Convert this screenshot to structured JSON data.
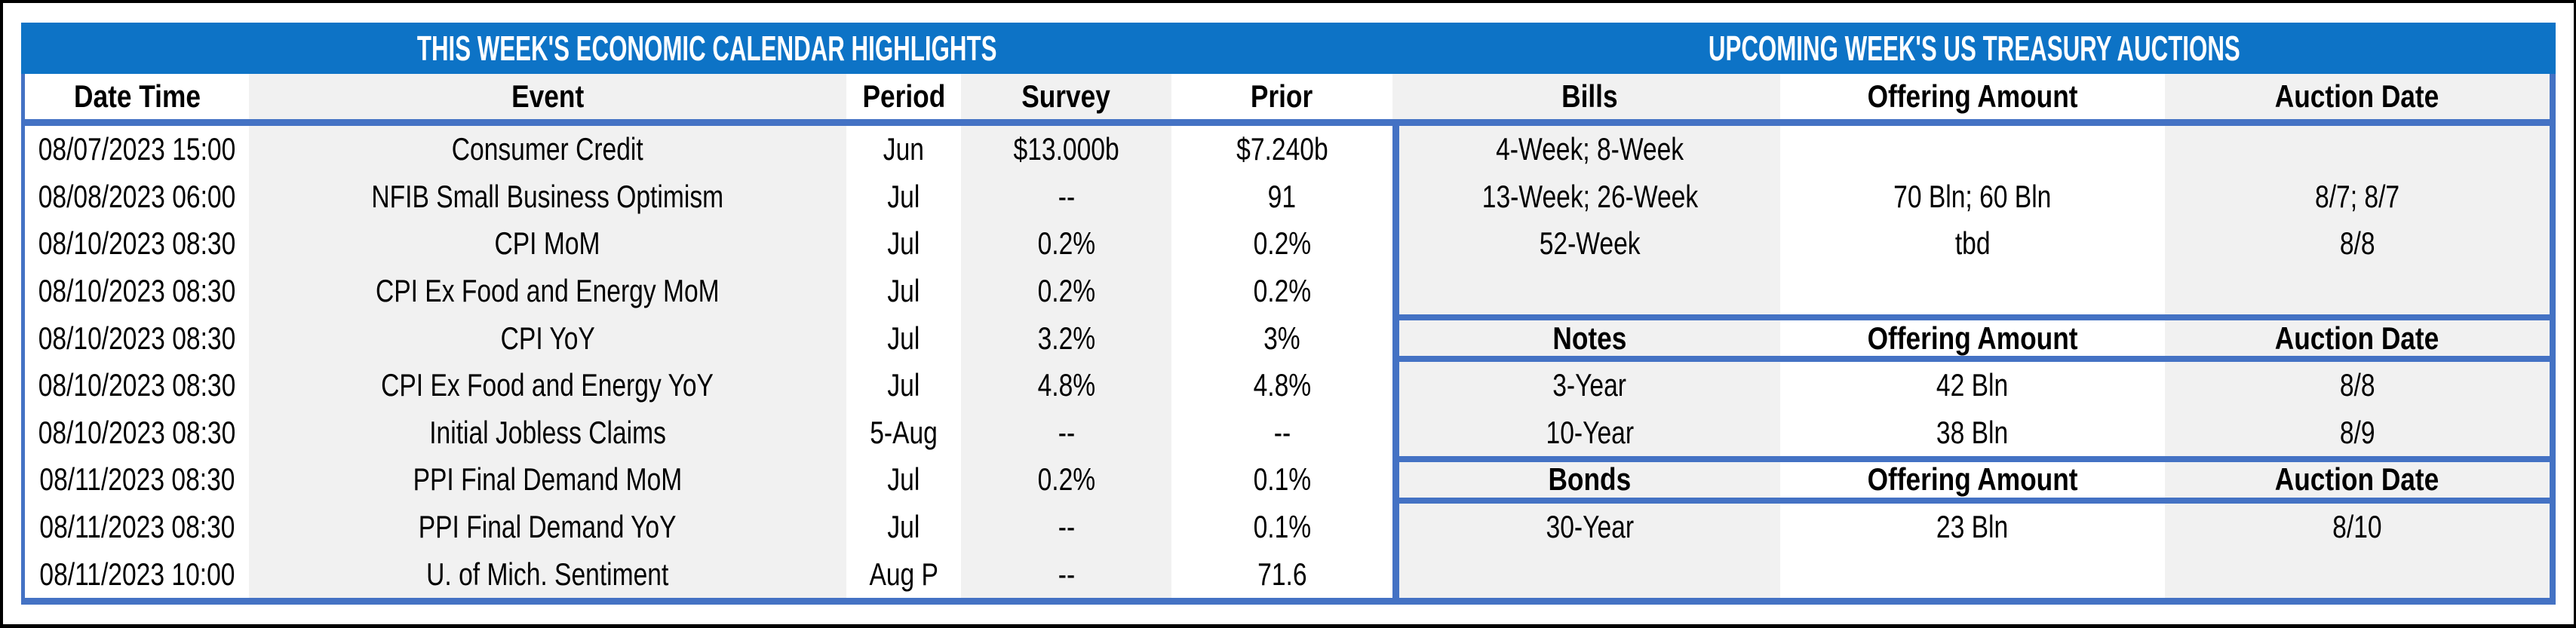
{
  "titles": {
    "left": "THIS WEEK'S ECONOMIC CALENDAR HIGHLIGHTS",
    "right": "UPCOMING WEEK'S US TREASURY AUCTIONS"
  },
  "colors": {
    "title_bar_blue": "#0D73C6",
    "border_blue": "#4472C4",
    "stripe_gray": "#F1F1F1",
    "frame_black": "#000000",
    "title_text": "#FFFFFF"
  },
  "calendar": {
    "columns": {
      "datetime": "Date Time",
      "event": "Event",
      "period": "Period",
      "survey": "Survey",
      "prior": "Prior"
    },
    "rows": [
      {
        "datetime": "08/07/2023 15:00",
        "event": "Consumer Credit",
        "period": "Jun",
        "survey": "$13.000b",
        "prior": "$7.240b"
      },
      {
        "datetime": "08/08/2023 06:00",
        "event": "NFIB Small Business Optimism",
        "period": "Jul",
        "survey": "--",
        "prior": "91"
      },
      {
        "datetime": "08/10/2023 08:30",
        "event": "CPI MoM",
        "period": "Jul",
        "survey": "0.2%",
        "prior": "0.2%"
      },
      {
        "datetime": "08/10/2023 08:30",
        "event": "CPI Ex Food and Energy MoM",
        "period": "Jul",
        "survey": "0.2%",
        "prior": "0.2%"
      },
      {
        "datetime": "08/10/2023 08:30",
        "event": "CPI YoY",
        "period": "Jul",
        "survey": "3.2%",
        "prior": "3%"
      },
      {
        "datetime": "08/10/2023 08:30",
        "event": "CPI Ex Food and Energy YoY",
        "period": "Jul",
        "survey": "4.8%",
        "prior": "4.8%"
      },
      {
        "datetime": "08/10/2023 08:30",
        "event": "Initial Jobless Claims",
        "period": "5-Aug",
        "survey": "--",
        "prior": "--"
      },
      {
        "datetime": "08/11/2023 08:30",
        "event": "PPI Final Demand MoM",
        "period": "Jul",
        "survey": "0.2%",
        "prior": "0.1%"
      },
      {
        "datetime": "08/11/2023 08:30",
        "event": "PPI Final Demand YoY",
        "period": "Jul",
        "survey": "--",
        "prior": "0.1%"
      },
      {
        "datetime": "08/11/2023 10:00",
        "event": "U. of Mich. Sentiment",
        "period": "Aug P",
        "survey": "--",
        "prior": "71.6"
      }
    ]
  },
  "auctions": {
    "columns": {
      "security": "Bills",
      "offering": "Offering Amount",
      "auction_date": "Auction Date"
    },
    "rows": [
      {
        "security": "4-Week; 8-Week",
        "offering": "",
        "auction_date": ""
      },
      {
        "security": "13-Week; 26-Week",
        "offering": "70 Bln; 60 Bln",
        "auction_date": "8/7; 8/7"
      },
      {
        "security": "52-Week",
        "offering": "tbd",
        "auction_date": "8/8"
      },
      {
        "security": "",
        "offering": "",
        "auction_date": ""
      },
      {
        "security": "Notes",
        "offering": "Offering Amount",
        "auction_date": "Auction Date"
      },
      {
        "security": "3-Year",
        "offering": "42 Bln",
        "auction_date": "8/8"
      },
      {
        "security": "10-Year",
        "offering": "38 Bln",
        "auction_date": "8/9"
      },
      {
        "security": "Bonds",
        "offering": "Offering Amount",
        "auction_date": "Auction Date"
      },
      {
        "security": "30-Year",
        "offering": "23 Bln",
        "auction_date": "8/10"
      },
      {
        "security": "",
        "offering": "",
        "auction_date": ""
      }
    ]
  }
}
